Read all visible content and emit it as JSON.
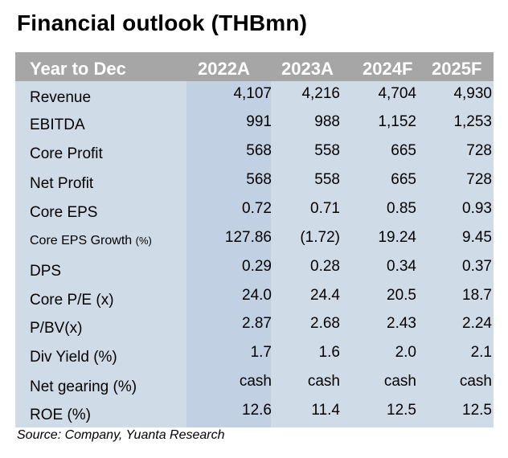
{
  "title": "Financial outlook (THBmn)",
  "header": {
    "label": "Year to Dec",
    "years": [
      "2022A",
      "2023A",
      "2024F",
      "2025F"
    ]
  },
  "rows": [
    {
      "label": "Revenue",
      "values": [
        "4,107",
        "4,216",
        "4,704",
        "4,930"
      ]
    },
    {
      "label": "EBITDA",
      "values": [
        "991",
        "988",
        "1,152",
        "1,253"
      ]
    },
    {
      "label": "Core Profit",
      "values": [
        "568",
        "558",
        "665",
        "728"
      ]
    },
    {
      "label": "Net Profit",
      "values": [
        "568",
        "558",
        "665",
        "728"
      ]
    },
    {
      "label": "Core EPS",
      "values": [
        "0.72",
        "0.71",
        "0.85",
        "0.93"
      ]
    },
    {
      "label": "Core EPS Growth",
      "unit": "(%)",
      "values": [
        "127.86",
        "(1.72)",
        "19.24",
        "9.45"
      ]
    },
    {
      "label": "DPS",
      "values": [
        "0.29",
        "0.28",
        "0.34",
        "0.37"
      ]
    },
    {
      "label": "Core P/E (x)",
      "values": [
        "24.0",
        "24.4",
        "20.5",
        "18.7"
      ]
    },
    {
      "label": "P/BV(x)",
      "values": [
        "2.87",
        "2.68",
        "2.43",
        "2.24"
      ]
    },
    {
      "label": "Div Yield (%)",
      "values": [
        "1.7",
        "1.6",
        "2.0",
        "2.1"
      ]
    },
    {
      "label": "Net gearing (%)",
      "values": [
        "cash",
        "cash",
        "cash",
        "cash"
      ]
    },
    {
      "label": "ROE (%)",
      "values": [
        "12.6",
        "11.4",
        "12.5",
        "12.5"
      ]
    }
  ],
  "source": "Source: Company, Yuanta Research",
  "colors": {
    "header_bg": "#a6a6a6",
    "body_bg": "#d0dbe8",
    "highlight_col_bg": "#c1d1e3"
  }
}
